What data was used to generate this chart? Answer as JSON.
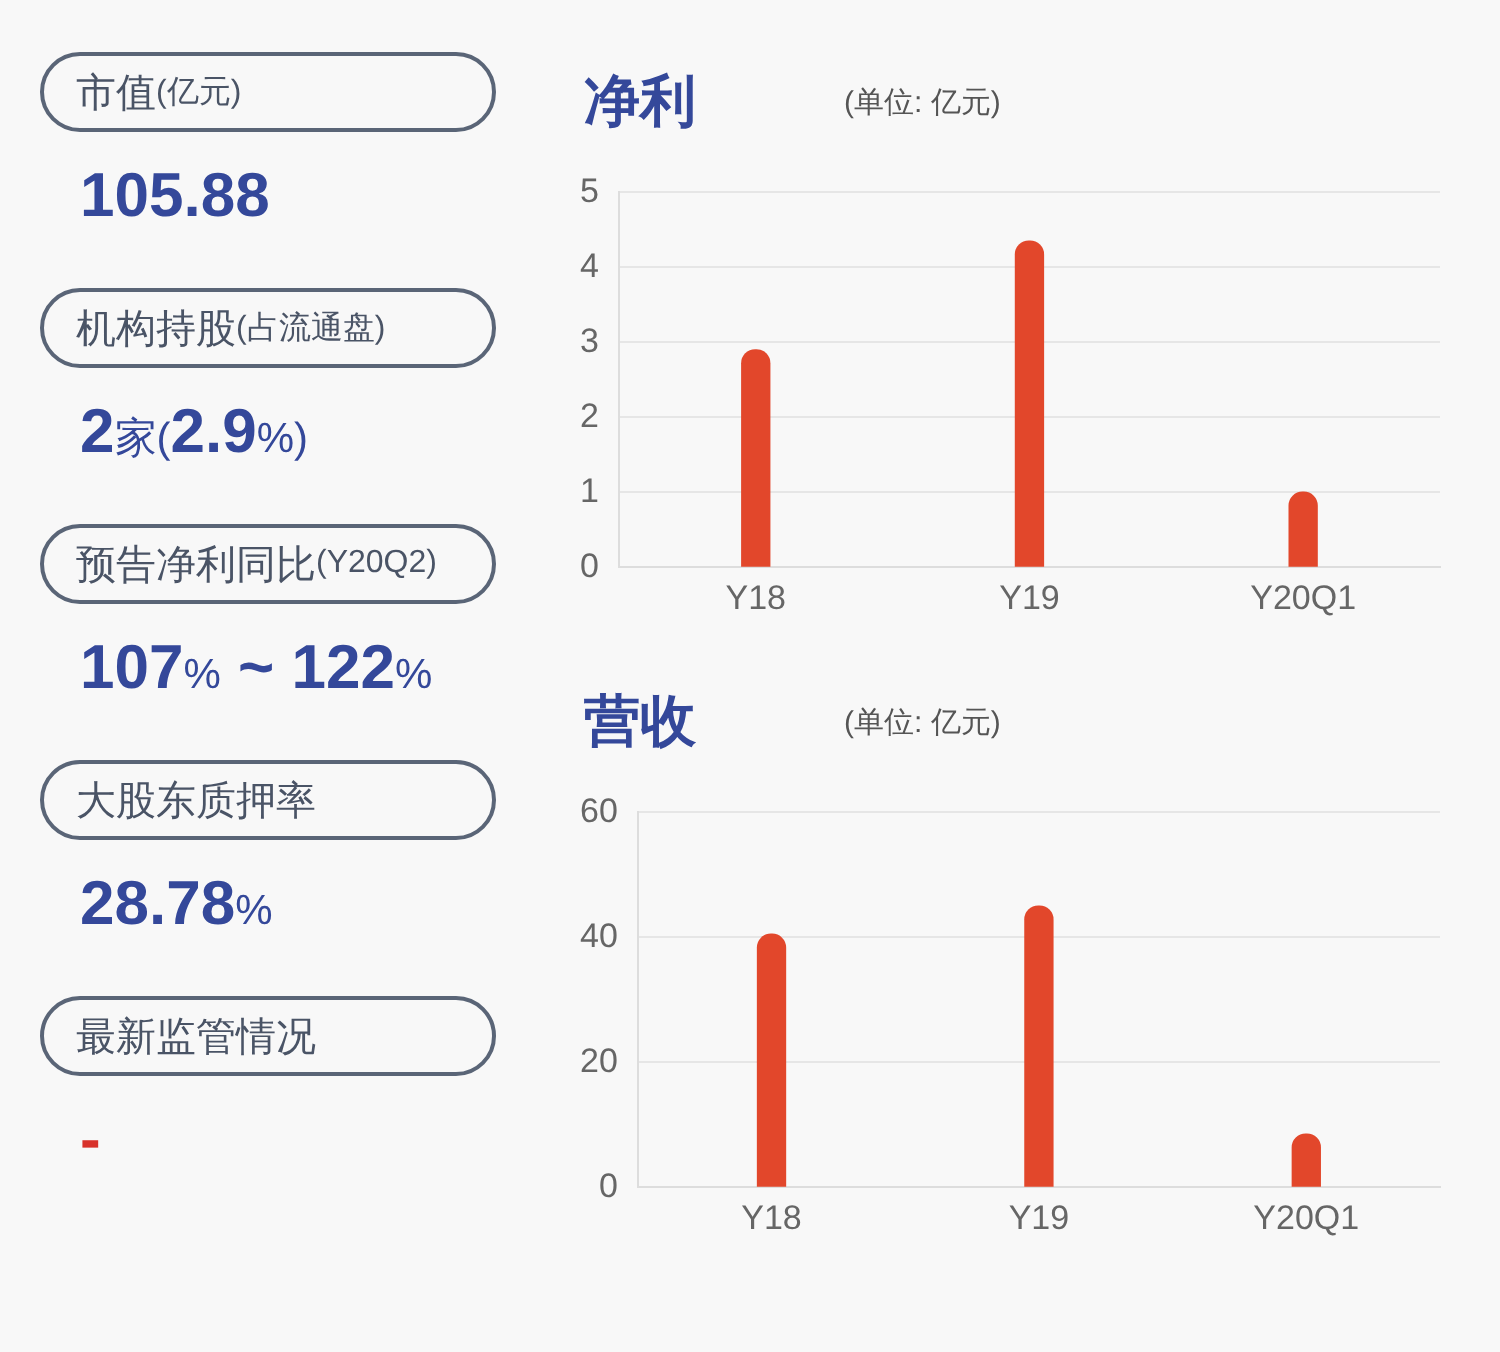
{
  "chart_data": [
    {
      "type": "other",
      "annotations": [
        "市值(亿元)",
        "105.88",
        "机构持股(占流通盘)",
        "2家(2.9%)",
        "预告净利同比(Y20Q2)",
        "107% ~ 122%",
        "大股东质押率",
        "28.78%",
        "最新监管情况",
        "-"
      ]
    },
    {
      "type": "bar",
      "title": "净利",
      "subtitle": "(单位: 亿元)",
      "categories": [
        "Y18",
        "Y19",
        "Y20Q1"
      ],
      "values": [
        2.9,
        4.35,
        1.0
      ],
      "color": "#e2472b",
      "ylim": [
        0,
        5
      ],
      "yticks": [
        0,
        1,
        2,
        3,
        4,
        5
      ],
      "grid": "y"
    },
    {
      "type": "bar",
      "title": "营收",
      "subtitle": "(单位: 亿元)",
      "categories": [
        "Y18",
        "Y19",
        "Y20Q1"
      ],
      "values": [
        40.5,
        45,
        8.5
      ],
      "color": "#e2472b",
      "ylim": [
        0,
        60
      ],
      "yticks": [
        0,
        20,
        40,
        60
      ],
      "grid": "y"
    }
  ]
}
